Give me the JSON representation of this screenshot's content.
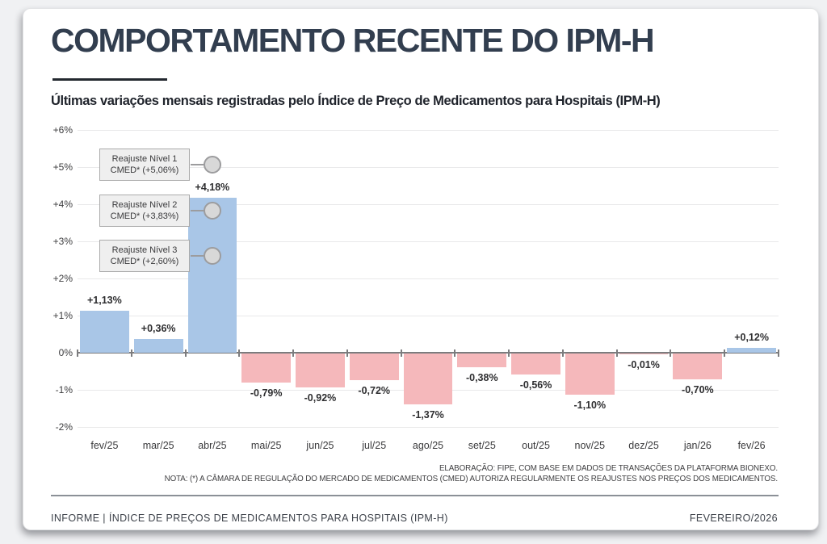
{
  "header": {
    "title": "COMPORTAMENTO RECENTE DO IPM-H",
    "subtitle": "Últimas variações mensais registradas pelo Índice de Preço de Medicamentos para Hospitais (IPM-H)"
  },
  "chart_data": {
    "type": "bar",
    "title": "Últimas variações mensais registradas pelo Índice de Preço de Medicamentos para Hospitais (IPM-H)",
    "categories": [
      "fev/25",
      "mar/25",
      "abr/25",
      "mai/25",
      "jun/25",
      "jul/25",
      "ago/25",
      "set/25",
      "out/25",
      "nov/25",
      "dez/25",
      "jan/26",
      "fev/26"
    ],
    "values": [
      1.13,
      0.36,
      4.18,
      -0.79,
      -0.92,
      -0.72,
      -1.37,
      -0.38,
      -0.56,
      -1.1,
      -0.01,
      -0.7,
      0.12
    ],
    "value_labels": [
      "+1,13%",
      "+0,36%",
      "+4,18%",
      "-0,79%",
      "-0,92%",
      "-0,72%",
      "-1,37%",
      "-0,38%",
      "-0,56%",
      "-1,10%",
      "-0,01%",
      "-0,70%",
      "+0,12%"
    ],
    "xlabel": "",
    "ylabel": "",
    "ylim": [
      -2,
      6
    ],
    "grid": true,
    "legend": "none",
    "yticks": [
      {
        "label": "+6%",
        "value": 6
      },
      {
        "label": "+5%",
        "value": 5
      },
      {
        "label": "+4%",
        "value": 4
      },
      {
        "label": "+3%",
        "value": 3
      },
      {
        "label": "+2%",
        "value": 2
      },
      {
        "label": "+1%",
        "value": 1
      },
      {
        "label": "0%",
        "value": 0
      },
      {
        "label": "-1%",
        "value": -1
      },
      {
        "label": "-2%",
        "value": -2
      }
    ],
    "colors": {
      "positive": "#a9c6e7",
      "negative": "#f5b8bb"
    },
    "annotation_anchor_category": "abr/25",
    "annotations": [
      {
        "line1": "Reajuste Nível 1",
        "line2": "CMED* (+5,06%)",
        "value": 5.06
      },
      {
        "line1": "Reajuste Nível 2",
        "line2": "CMED* (+3,83%)",
        "value": 3.83
      },
      {
        "line1": "Reajuste Nível 3",
        "line2": "CMED* (+2,60%)",
        "value": 2.6
      }
    ]
  },
  "notes": {
    "line1": "ELABORAÇÃO: FIPE, COM BASE EM DADOS DE TRANSAÇÕES DA PLATAFORMA BIONEXO.",
    "line2": "NOTA: (*) A CÂMARA DE REGULAÇÃO DO MERCADO DE MEDICAMENTOS (CMED) AUTORIZA REGULARMENTE OS REAJUSTES NOS PREÇOS DOS MEDICAMENTOS."
  },
  "footer": {
    "left": "INFORME | ÍNDICE DE PREÇOS DE MEDICAMENTOS PARA HOSPITAIS (IPM-H)",
    "right": "FEVEREIRO/2026"
  }
}
